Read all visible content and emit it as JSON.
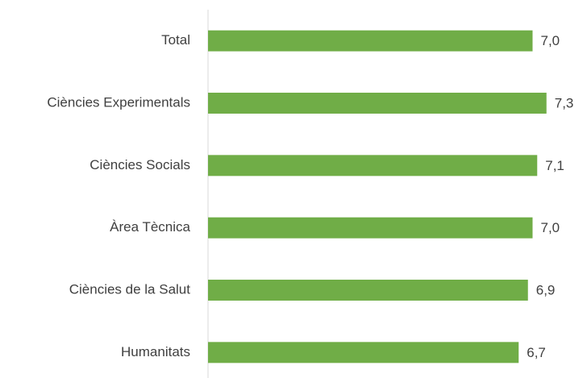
{
  "chart_data": {
    "type": "hbar",
    "categories": [
      "Total",
      "Ciències Experimentals",
      "Ciències Socials",
      "Àrea Tècnica",
      "Ciències de la Salut",
      "Humanitats"
    ],
    "values": [
      7.0,
      7.3,
      7.1,
      7.0,
      6.9,
      6.7
    ],
    "value_labels": [
      "7,0",
      "7,3",
      "7,1",
      "7,0",
      "6,9",
      "6,7"
    ],
    "color": "#70ad47",
    "xlim": [
      0,
      8
    ]
  }
}
